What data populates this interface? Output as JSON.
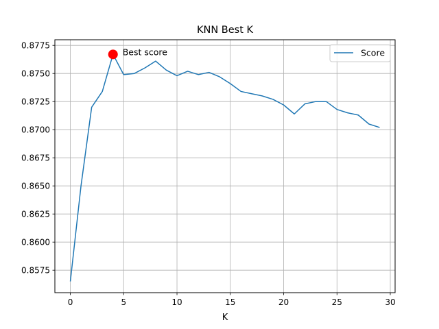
{
  "chart_data": {
    "type": "line",
    "title": "KNN Best K",
    "xlabel": "K",
    "ylabel": "",
    "xlim": [
      -1.45,
      30.45
    ],
    "ylim": [
      0.8555,
      0.878
    ],
    "xticks": [
      0,
      5,
      10,
      15,
      20,
      25,
      30
    ],
    "yticks": [
      0.8575,
      0.86,
      0.8625,
      0.865,
      0.8675,
      0.87,
      0.8725,
      0.875,
      0.8775
    ],
    "grid": true,
    "legend_position": "top-right",
    "series": [
      {
        "name": "Score",
        "color": "#1f77b4",
        "x": [
          0,
          1,
          2,
          3,
          4,
          5,
          6,
          7,
          8,
          9,
          10,
          11,
          12,
          13,
          14,
          15,
          16,
          17,
          18,
          19,
          20,
          21,
          22,
          23,
          24,
          25,
          26,
          27,
          28,
          29
        ],
        "y": [
          0.8565,
          0.865,
          0.872,
          0.8734,
          0.8767,
          0.8749,
          0.875,
          0.8755,
          0.8761,
          0.8753,
          0.8748,
          0.8752,
          0.8749,
          0.8751,
          0.8747,
          0.8741,
          0.8734,
          0.8732,
          0.873,
          0.8727,
          0.8722,
          0.8714,
          0.8723,
          0.8725,
          0.8725,
          0.8718,
          0.8715,
          0.8713,
          0.8705,
          0.8702
        ]
      }
    ],
    "highlight": {
      "x": 4,
      "y": 0.8767,
      "label": "Best score",
      "color": "#ff0000"
    }
  }
}
